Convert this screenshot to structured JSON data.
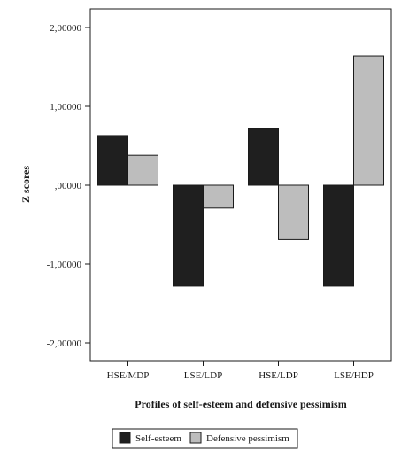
{
  "chart_data": {
    "type": "bar",
    "xlabel": "Profiles of self-esteem and defensive pessimism",
    "ylabel": "Z scores",
    "ylim": [
      -2.2,
      2.2
    ],
    "yticks": [
      2.0,
      1.0,
      0.0,
      -1.0,
      -2.0
    ],
    "ytick_labels": [
      "2,00000",
      "1,00000",
      ",00000",
      "-1,00000",
      "-2,00000"
    ],
    "categories": [
      "HSE/MDP",
      "LSE/LDP",
      "HSE/LDP",
      "LSE/HDP"
    ],
    "series": [
      {
        "name": "Self-esteem",
        "color": "#1f1f1f",
        "values": [
          0.63,
          -1.28,
          0.72,
          -1.28
        ]
      },
      {
        "name": "Defensive pessimism",
        "color": "#bdbdbd",
        "values": [
          0.38,
          -0.29,
          -0.69,
          1.64
        ]
      }
    ],
    "grid": false,
    "legend_position": "bottom"
  }
}
